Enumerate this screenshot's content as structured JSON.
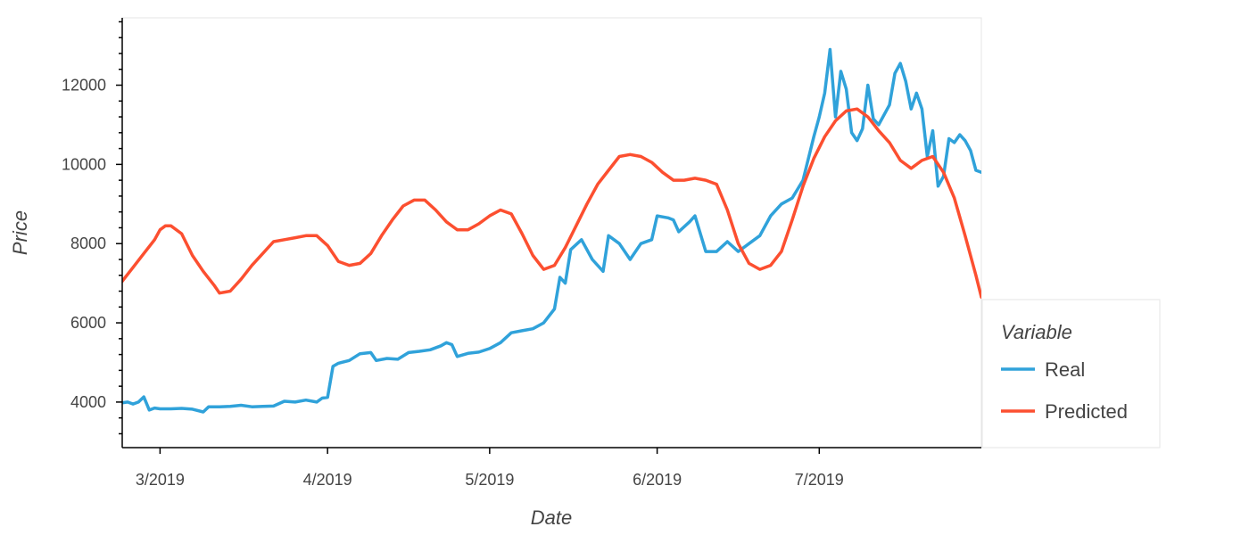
{
  "chart_data": {
    "type": "line",
    "xlabel": "Date",
    "ylabel": "Price",
    "x_range": [
      "2019-02-22",
      "2019-07-31"
    ],
    "ylim": [
      2850,
      13700
    ],
    "y_ticks": [
      4000,
      6000,
      8000,
      10000,
      12000
    ],
    "y_minor_step": 400,
    "x_ticks": [
      {
        "date": "2019-03-01",
        "label": "3/2019"
      },
      {
        "date": "2019-04-01",
        "label": "4/2019"
      },
      {
        "date": "2019-05-01",
        "label": "5/2019"
      },
      {
        "date": "2019-06-01",
        "label": "6/2019"
      },
      {
        "date": "2019-07-01",
        "label": "7/2019"
      }
    ],
    "grid": false,
    "legend": {
      "title": "Variable",
      "placement": "right"
    },
    "series": [
      {
        "name": "Real",
        "color": "#30a2da",
        "points": [
          [
            "2019-02-22",
            3980
          ],
          [
            "2019-02-23",
            4000
          ],
          [
            "2019-02-24",
            3950
          ],
          [
            "2019-02-25",
            4000
          ],
          [
            "2019-02-26",
            4130
          ],
          [
            "2019-02-27",
            3800
          ],
          [
            "2019-02-28",
            3850
          ],
          [
            "2019-03-01",
            3830
          ],
          [
            "2019-03-03",
            3830
          ],
          [
            "2019-03-05",
            3840
          ],
          [
            "2019-03-07",
            3820
          ],
          [
            "2019-03-09",
            3750
          ],
          [
            "2019-03-10",
            3880
          ],
          [
            "2019-03-12",
            3880
          ],
          [
            "2019-03-14",
            3890
          ],
          [
            "2019-03-16",
            3920
          ],
          [
            "2019-03-18",
            3880
          ],
          [
            "2019-03-20",
            3890
          ],
          [
            "2019-03-22",
            3900
          ],
          [
            "2019-03-24",
            4020
          ],
          [
            "2019-03-26",
            4000
          ],
          [
            "2019-03-28",
            4050
          ],
          [
            "2019-03-30",
            4000
          ],
          [
            "2019-03-31",
            4100
          ],
          [
            "2019-04-01",
            4120
          ],
          [
            "2019-04-02",
            4900
          ],
          [
            "2019-04-03",
            4980
          ],
          [
            "2019-04-05",
            5050
          ],
          [
            "2019-04-07",
            5220
          ],
          [
            "2019-04-09",
            5250
          ],
          [
            "2019-04-10",
            5050
          ],
          [
            "2019-04-12",
            5100
          ],
          [
            "2019-04-14",
            5080
          ],
          [
            "2019-04-16",
            5250
          ],
          [
            "2019-04-18",
            5280
          ],
          [
            "2019-04-20",
            5320
          ],
          [
            "2019-04-22",
            5420
          ],
          [
            "2019-04-23",
            5500
          ],
          [
            "2019-04-24",
            5450
          ],
          [
            "2019-04-25",
            5150
          ],
          [
            "2019-04-27",
            5230
          ],
          [
            "2019-04-29",
            5260
          ],
          [
            "2019-05-01",
            5350
          ],
          [
            "2019-05-03",
            5500
          ],
          [
            "2019-05-05",
            5750
          ],
          [
            "2019-05-07",
            5800
          ],
          [
            "2019-05-09",
            5850
          ],
          [
            "2019-05-11",
            6000
          ],
          [
            "2019-05-13",
            6350
          ],
          [
            "2019-05-14",
            7150
          ],
          [
            "2019-05-15",
            7000
          ],
          [
            "2019-05-16",
            7850
          ],
          [
            "2019-05-18",
            8100
          ],
          [
            "2019-05-20",
            7600
          ],
          [
            "2019-05-22",
            7300
          ],
          [
            "2019-05-23",
            8200
          ],
          [
            "2019-05-25",
            8000
          ],
          [
            "2019-05-27",
            7600
          ],
          [
            "2019-05-29",
            8000
          ],
          [
            "2019-05-31",
            8100
          ],
          [
            "2019-06-01",
            8700
          ],
          [
            "2019-06-03",
            8650
          ],
          [
            "2019-06-04",
            8600
          ],
          [
            "2019-06-05",
            8300
          ],
          [
            "2019-06-07",
            8550
          ],
          [
            "2019-06-08",
            8700
          ],
          [
            "2019-06-10",
            7800
          ],
          [
            "2019-06-12",
            7800
          ],
          [
            "2019-06-14",
            8050
          ],
          [
            "2019-06-16",
            7800
          ],
          [
            "2019-06-18",
            8000
          ],
          [
            "2019-06-20",
            8200
          ],
          [
            "2019-06-22",
            8700
          ],
          [
            "2019-06-24",
            9000
          ],
          [
            "2019-06-26",
            9150
          ],
          [
            "2019-06-28",
            9600
          ],
          [
            "2019-06-30",
            10700
          ],
          [
            "2019-07-01",
            11200
          ],
          [
            "2019-07-02",
            11800
          ],
          [
            "2019-07-03",
            12900
          ],
          [
            "2019-07-04",
            11200
          ],
          [
            "2019-07-05",
            12350
          ],
          [
            "2019-07-06",
            11900
          ],
          [
            "2019-07-07",
            10800
          ],
          [
            "2019-07-08",
            10600
          ],
          [
            "2019-07-09",
            10900
          ],
          [
            "2019-07-10",
            12000
          ],
          [
            "2019-07-11",
            11150
          ],
          [
            "2019-07-12",
            11000
          ],
          [
            "2019-07-14",
            11500
          ],
          [
            "2019-07-15",
            12300
          ],
          [
            "2019-07-16",
            12550
          ],
          [
            "2019-07-17",
            12100
          ],
          [
            "2019-07-18",
            11400
          ],
          [
            "2019-07-19",
            11800
          ],
          [
            "2019-07-20",
            11400
          ],
          [
            "2019-07-21",
            10200
          ],
          [
            "2019-07-22",
            10850
          ],
          [
            "2019-07-23",
            9450
          ],
          [
            "2019-07-24",
            9700
          ],
          [
            "2019-07-25",
            10650
          ],
          [
            "2019-07-26",
            10550
          ],
          [
            "2019-07-27",
            10750
          ],
          [
            "2019-07-28",
            10600
          ],
          [
            "2019-07-29",
            10350
          ],
          [
            "2019-07-30",
            9850
          ],
          [
            "2019-07-31",
            9800
          ]
        ]
      },
      {
        "name": "Predicted",
        "color": "#fc4f30",
        "points": [
          [
            "2019-02-22",
            7050
          ],
          [
            "2019-02-24",
            7400
          ],
          [
            "2019-02-26",
            7750
          ],
          [
            "2019-02-28",
            8100
          ],
          [
            "2019-03-01",
            8350
          ],
          [
            "2019-03-02",
            8450
          ],
          [
            "2019-03-03",
            8450
          ],
          [
            "2019-03-05",
            8250
          ],
          [
            "2019-03-07",
            7700
          ],
          [
            "2019-03-09",
            7300
          ],
          [
            "2019-03-11",
            6950
          ],
          [
            "2019-03-12",
            6750
          ],
          [
            "2019-03-14",
            6800
          ],
          [
            "2019-03-16",
            7100
          ],
          [
            "2019-03-18",
            7450
          ],
          [
            "2019-03-20",
            7750
          ],
          [
            "2019-03-22",
            8050
          ],
          [
            "2019-03-24",
            8100
          ],
          [
            "2019-03-26",
            8150
          ],
          [
            "2019-03-28",
            8200
          ],
          [
            "2019-03-30",
            8200
          ],
          [
            "2019-04-01",
            7950
          ],
          [
            "2019-04-03",
            7550
          ],
          [
            "2019-04-05",
            7450
          ],
          [
            "2019-04-07",
            7500
          ],
          [
            "2019-04-09",
            7750
          ],
          [
            "2019-04-11",
            8200
          ],
          [
            "2019-04-13",
            8600
          ],
          [
            "2019-04-15",
            8950
          ],
          [
            "2019-04-17",
            9100
          ],
          [
            "2019-04-19",
            9100
          ],
          [
            "2019-04-21",
            8850
          ],
          [
            "2019-04-23",
            8550
          ],
          [
            "2019-04-25",
            8350
          ],
          [
            "2019-04-27",
            8350
          ],
          [
            "2019-04-29",
            8500
          ],
          [
            "2019-05-01",
            8700
          ],
          [
            "2019-05-03",
            8850
          ],
          [
            "2019-05-05",
            8750
          ],
          [
            "2019-05-07",
            8250
          ],
          [
            "2019-05-09",
            7700
          ],
          [
            "2019-05-11",
            7350
          ],
          [
            "2019-05-13",
            7450
          ],
          [
            "2019-05-15",
            7900
          ],
          [
            "2019-05-17",
            8450
          ],
          [
            "2019-05-19",
            9000
          ],
          [
            "2019-05-21",
            9500
          ],
          [
            "2019-05-23",
            9850
          ],
          [
            "2019-05-25",
            10200
          ],
          [
            "2019-05-27",
            10250
          ],
          [
            "2019-05-29",
            10200
          ],
          [
            "2019-05-31",
            10050
          ],
          [
            "2019-06-02",
            9800
          ],
          [
            "2019-06-04",
            9600
          ],
          [
            "2019-06-06",
            9600
          ],
          [
            "2019-06-08",
            9650
          ],
          [
            "2019-06-10",
            9600
          ],
          [
            "2019-06-12",
            9500
          ],
          [
            "2019-06-14",
            8850
          ],
          [
            "2019-06-16",
            8000
          ],
          [
            "2019-06-18",
            7500
          ],
          [
            "2019-06-20",
            7350
          ],
          [
            "2019-06-22",
            7450
          ],
          [
            "2019-06-24",
            7800
          ],
          [
            "2019-06-26",
            8600
          ],
          [
            "2019-06-28",
            9450
          ],
          [
            "2019-06-30",
            10150
          ],
          [
            "2019-07-02",
            10700
          ],
          [
            "2019-07-04",
            11100
          ],
          [
            "2019-07-06",
            11350
          ],
          [
            "2019-07-08",
            11400
          ],
          [
            "2019-07-10",
            11200
          ],
          [
            "2019-07-12",
            10850
          ],
          [
            "2019-07-14",
            10550
          ],
          [
            "2019-07-16",
            10100
          ],
          [
            "2019-07-18",
            9900
          ],
          [
            "2019-07-20",
            10100
          ],
          [
            "2019-07-22",
            10200
          ],
          [
            "2019-07-24",
            9800
          ],
          [
            "2019-07-26",
            9150
          ],
          [
            "2019-07-28",
            8200
          ],
          [
            "2019-07-30",
            7200
          ],
          [
            "2019-07-31",
            6650
          ],
          [
            "2019-08-01",
            6550
          ],
          [
            "2019-08-02",
            6500
          ],
          [
            "2019-08-03",
            6400
          ]
        ]
      }
    ]
  }
}
